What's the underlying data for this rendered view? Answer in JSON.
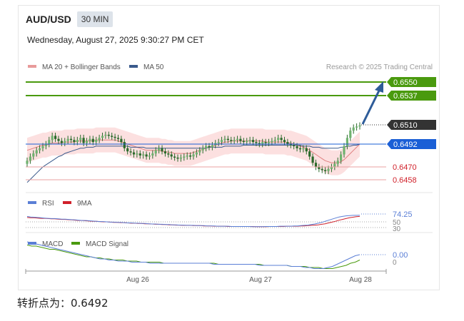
{
  "header": {
    "symbol": "AUD/USD",
    "timeframe": "30 MIN",
    "datetime": "Wednesday, August 27, 2025 9:30:27 PM CET",
    "copyright": "Research © 2025 Trading Central"
  },
  "legend": {
    "ma20": "MA 20 + Bollinger Bands",
    "ma50": "MA 50",
    "rsi": "RSI",
    "rsi_ma": "9MA",
    "macd": "MACD",
    "macd_signal": "MACD Signal"
  },
  "colors": {
    "up_target": "#4a9a0e",
    "current": "#333333",
    "pivot": "#1a5fd6",
    "support": "#d0202a",
    "candle": "#2b6a2b",
    "ma20": "#e08080",
    "ma50": "#3a5a8c",
    "band": "#fbd6d6"
  },
  "levels": {
    "target_high": "0.6550",
    "target_low": "0.6537",
    "current": "0.6510",
    "pivot": "0.6492",
    "support_1": "0.6470",
    "support_2": "0.6458"
  },
  "rsi_labels": {
    "value": "74.25",
    "mid": "50",
    "low": "30"
  },
  "macd_labels": {
    "value": "0.00",
    "zero": "0"
  },
  "x_labels": [
    "Aug 26",
    "Aug 27",
    "Aug 28"
  ],
  "footer": "转折点为：0.6492",
  "chart_data": {
    "type": "line",
    "instrument": "AUD/USD",
    "interval": "30 MIN",
    "price": {
      "y_unit": "AUD/USD",
      "close": [
        0.6476,
        0.648,
        0.6483,
        0.6486,
        0.6488,
        0.649,
        0.6492,
        0.6496,
        0.65,
        0.6497,
        0.6495,
        0.6493,
        0.6495,
        0.6497,
        0.6496,
        0.6494,
        0.6496,
        0.6498,
        0.6493,
        0.6495,
        0.6497,
        0.6494,
        0.6496,
        0.6498,
        0.65,
        0.6501,
        0.65,
        0.6499,
        0.6498,
        0.6497,
        0.6494,
        0.6488,
        0.6485,
        0.6484,
        0.6482,
        0.6483,
        0.6481,
        0.6482,
        0.648,
        0.6481,
        0.6483,
        0.6486,
        0.6488,
        0.6485,
        0.6483,
        0.6482,
        0.648,
        0.6479,
        0.6478,
        0.6479,
        0.648,
        0.6481,
        0.648,
        0.6482,
        0.6484,
        0.6486,
        0.6488,
        0.649,
        0.6489,
        0.6491,
        0.6493,
        0.6494,
        0.6496,
        0.6497,
        0.6496,
        0.6495,
        0.6496,
        0.6497,
        0.6495,
        0.6494,
        0.6495,
        0.6496,
        0.6494,
        0.6493,
        0.6492,
        0.6494,
        0.6493,
        0.6494,
        0.6495,
        0.6496,
        0.6498,
        0.6496,
        0.6494,
        0.6492,
        0.6491,
        0.649,
        0.6488,
        0.6487,
        0.6488,
        0.6485,
        0.648,
        0.6474,
        0.647,
        0.6468,
        0.6467,
        0.6466,
        0.6468,
        0.647,
        0.6473,
        0.6476,
        0.6482,
        0.649,
        0.6498,
        0.6505,
        0.6508,
        0.6509,
        0.651
      ],
      "ma20": [
        0.6486,
        0.6487,
        0.6488,
        0.6489,
        0.649,
        0.6491,
        0.6491,
        0.6492,
        0.6493,
        0.6493,
        0.6493,
        0.6493,
        0.6494,
        0.6494,
        0.6494,
        0.6494,
        0.6495,
        0.6495,
        0.6495,
        0.6495,
        0.6495,
        0.6495,
        0.6496,
        0.6496,
        0.6496,
        0.6496,
        0.6496,
        0.6496,
        0.6496,
        0.6495,
        0.6494,
        0.6493,
        0.6492,
        0.6491,
        0.649,
        0.6489,
        0.6488,
        0.6487,
        0.6486,
        0.6486,
        0.6486,
        0.6486,
        0.6486,
        0.6485,
        0.6485,
        0.6484,
        0.6484,
        0.6483,
        0.6483,
        0.6483,
        0.6483,
        0.6483,
        0.6483,
        0.6484,
        0.6485,
        0.6486,
        0.6487,
        0.6488,
        0.6489,
        0.649,
        0.6491,
        0.6492,
        0.6493,
        0.6494,
        0.6494,
        0.6495,
        0.6495,
        0.6495,
        0.6495,
        0.6495,
        0.6495,
        0.6495,
        0.6495,
        0.6495,
        0.6495,
        0.6495,
        0.6494,
        0.6494,
        0.6494,
        0.6494,
        0.6494,
        0.6494,
        0.6494,
        0.6493,
        0.6493,
        0.6492,
        0.6491,
        0.649,
        0.6489,
        0.6488,
        0.6486,
        0.6484,
        0.6482,
        0.648,
        0.6478,
        0.6476,
        0.6475,
        0.6474,
        0.6474,
        0.6474,
        0.6475,
        0.6477,
        0.648,
        0.6483,
        0.6486,
        0.6489,
        0.6492
      ],
      "ma50": [
        0.6455,
        0.6458,
        0.6461,
        0.6464,
        0.6467,
        0.647,
        0.6472,
        0.6474,
        0.6476,
        0.6478,
        0.648,
        0.6481,
        0.6483,
        0.6484,
        0.6485,
        0.6486,
        0.6487,
        0.6488,
        0.6488,
        0.6489,
        0.6489,
        0.6489,
        0.649,
        0.649,
        0.649,
        0.649,
        0.649,
        0.649,
        0.649,
        0.649,
        0.649,
        0.649,
        0.649,
        0.6489,
        0.6489,
        0.6489,
        0.6489,
        0.6489,
        0.6488,
        0.6488,
        0.6488,
        0.6488,
        0.6488,
        0.6488,
        0.6488,
        0.6488,
        0.6488,
        0.6488,
        0.6488,
        0.6488,
        0.6488,
        0.6488,
        0.6488,
        0.6488,
        0.6488,
        0.6488,
        0.6488,
        0.6488,
        0.6489,
        0.6489,
        0.6489,
        0.6489,
        0.6489,
        0.649,
        0.649,
        0.649,
        0.649,
        0.649,
        0.649,
        0.6491,
        0.6491,
        0.6491,
        0.6491,
        0.6491,
        0.6491,
        0.6491,
        0.6491,
        0.6491,
        0.6491,
        0.6491,
        0.6491,
        0.6491,
        0.6491,
        0.6491,
        0.6491,
        0.6491,
        0.6491,
        0.6491,
        0.649,
        0.649,
        0.649,
        0.6489,
        0.6489,
        0.6489,
        0.6488,
        0.6488,
        0.6488,
        0.6488,
        0.6488,
        0.6488,
        0.6489,
        0.6489,
        0.649,
        0.649,
        0.6491,
        0.6491,
        0.6492
      ],
      "band_width": 0.0012
    },
    "rsi": {
      "values": [
        70,
        68,
        67,
        66,
        65,
        64,
        63,
        62,
        62,
        61,
        60,
        60,
        59,
        58,
        57,
        56,
        55,
        55,
        54,
        53,
        52,
        51,
        51,
        50,
        49,
        49,
        48,
        48,
        47,
        46,
        46,
        45,
        45,
        44,
        44,
        43,
        42,
        42,
        41,
        41,
        40,
        40,
        39,
        39,
        38,
        38,
        37,
        37,
        37,
        36,
        36,
        36,
        35,
        35,
        35,
        34,
        34,
        34,
        34,
        33,
        33,
        33,
        33,
        33,
        33,
        32,
        32,
        32,
        32,
        33,
        33,
        33,
        33,
        34,
        34,
        34,
        34,
        35,
        35,
        36,
        37,
        38,
        40,
        42,
        45,
        48,
        52,
        56,
        60,
        64,
        68,
        70,
        72,
        73,
        74,
        74,
        74.25
      ],
      "ma9": [
        66,
        65,
        65,
        64,
        63,
        63,
        62,
        61,
        61,
        60,
        59,
        59,
        58,
        57,
        56,
        55,
        55,
        54,
        53,
        52,
        52,
        51,
        50,
        50,
        49,
        48,
        48,
        47,
        47,
        46,
        45,
        45,
        44,
        44,
        43,
        43,
        42,
        41,
        41,
        40,
        40,
        39,
        39,
        38,
        38,
        37,
        37,
        37,
        36,
        36,
        36,
        35,
        35,
        35,
        34,
        34,
        34,
        34,
        33,
        33,
        33,
        33,
        33,
        33,
        33,
        33,
        32,
        32,
        32,
        32,
        33,
        33,
        33,
        33,
        33,
        34,
        34,
        34,
        34,
        35,
        35,
        36,
        37,
        38,
        39,
        41,
        43,
        46,
        49,
        52,
        56,
        59,
        62,
        65,
        67,
        69,
        70
      ]
    },
    "macd": {
      "values": [
        0.0012,
        0.0011,
        0.001,
        0.0009,
        0.0008,
        0.0007,
        0.0006,
        0.0005,
        0.0004,
        0.0003,
        0.0002,
        0.0001,
        0.0,
        -0.0001,
        -0.0002,
        -0.0003,
        -0.0004,
        -0.0004,
        -0.0005,
        -0.0005,
        -0.0006,
        -0.0006,
        -0.0006,
        -0.0007,
        -0.0007,
        -0.0007,
        -0.0007,
        -0.0008,
        -0.0008,
        -0.0008,
        -0.0008,
        -0.0008,
        -0.0008,
        -0.0008,
        -0.0008,
        -0.0008,
        -0.0008,
        -0.0008,
        -0.0008,
        -0.0008,
        -0.0008,
        -0.0009,
        -0.0009,
        -0.0009,
        -0.0009,
        -0.0009,
        -0.0009,
        -0.0009,
        -0.0009,
        -0.0009,
        -0.0009,
        -0.001,
        -0.001,
        -0.001,
        -0.001,
        -0.001,
        -0.001,
        -0.001,
        -0.0011,
        -0.0011,
        -0.0011,
        -0.0012,
        -0.0012,
        -0.0013,
        -0.0013,
        -0.0013,
        -0.0012,
        -0.0011,
        -0.0009,
        -0.0007,
        -0.0005,
        -0.0003,
        -0.0001,
        0.0
      ],
      "signal": [
        0.0009,
        0.0008,
        0.0008,
        0.0007,
        0.0006,
        0.0005,
        0.0005,
        0.0004,
        0.0003,
        0.0002,
        0.0001,
        0.0,
        -0.0001,
        -0.0002,
        -0.0002,
        -0.0003,
        -0.0003,
        -0.0004,
        -0.0004,
        -0.0005,
        -0.0005,
        -0.0005,
        -0.0006,
        -0.0006,
        -0.0006,
        -0.0007,
        -0.0007,
        -0.0007,
        -0.0007,
        -0.0007,
        -0.0008,
        -0.0008,
        -0.0008,
        -0.0008,
        -0.0008,
        -0.0008,
        -0.0008,
        -0.0008,
        -0.0008,
        -0.0008,
        -0.0008,
        -0.0008,
        -0.0009,
        -0.0009,
        -0.0009,
        -0.0009,
        -0.0009,
        -0.0009,
        -0.0009,
        -0.0009,
        -0.0009,
        -0.0009,
        -0.001,
        -0.001,
        -0.001,
        -0.001,
        -0.001,
        -0.001,
        -0.0011,
        -0.0011,
        -0.0011,
        -0.0011,
        -0.0012,
        -0.0012,
        -0.0012,
        -0.0013,
        -0.0013,
        -0.0013,
        -0.0012,
        -0.0011,
        -0.001,
        -0.0008,
        -0.0007,
        -0.0005
      ]
    },
    "x_ticks": [
      "Aug 26",
      "Aug 27",
      "Aug 28"
    ]
  }
}
